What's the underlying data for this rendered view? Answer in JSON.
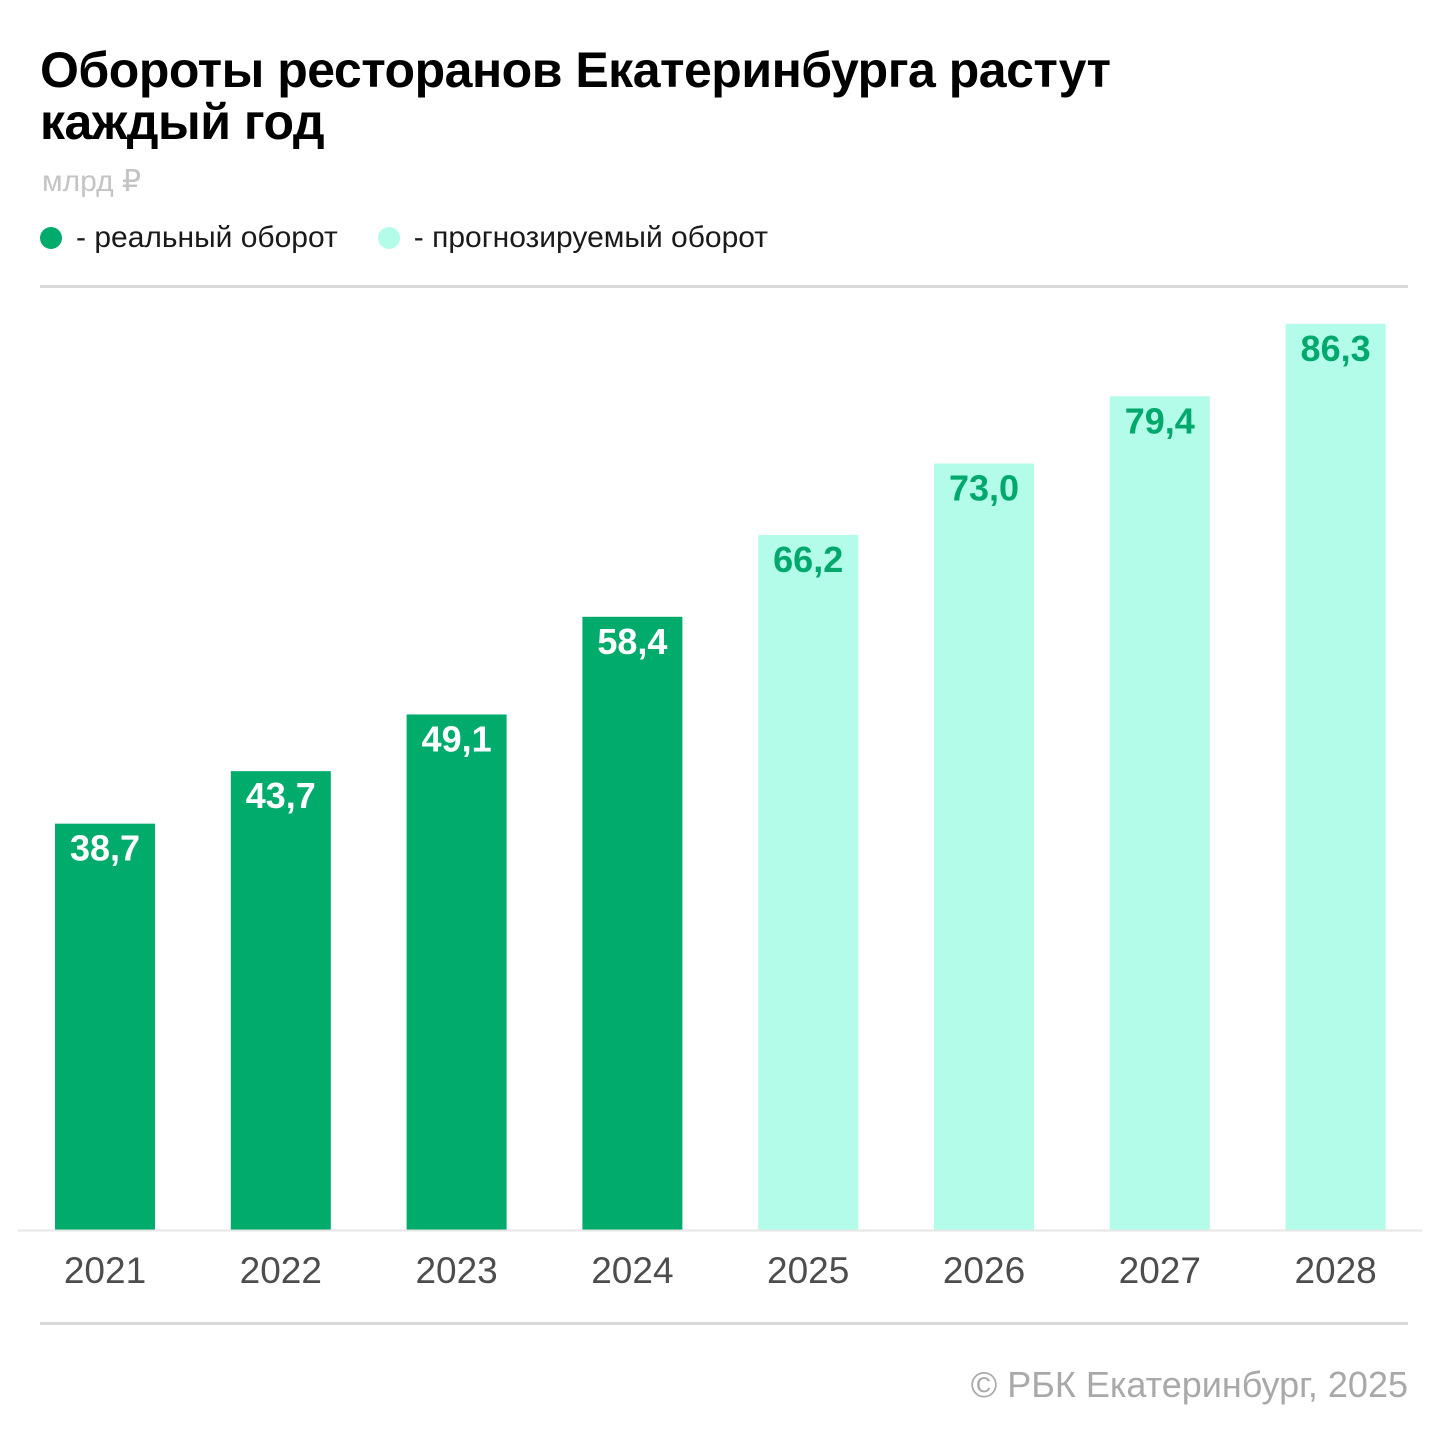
{
  "colors": {
    "actual": "#00ab6c",
    "forecast": "#b3fcea",
    "label_on_actual": "#ffffff",
    "label_on_forecast": "#00a86b",
    "tick": "#4d4d4d"
  },
  "legend": {
    "actual_label": "- реальный оборот",
    "forecast_label": "- прогнозируемый оборот"
  },
  "credit": "© РБК Екатеринбург, 2025",
  "chart_data": {
    "type": "bar",
    "title": "Обороты ресторанов Екатеринбурга растут каждый год",
    "title_lines": [
      "Обороты ресторанов Екатеринбурга растут",
      "каждый год"
    ],
    "unit": "млрд ₽",
    "xlabel": "",
    "ylabel": "",
    "ylim": [
      0,
      90
    ],
    "grid": false,
    "legend_position": "top-left",
    "categories": [
      "2021",
      "2022",
      "2023",
      "2024",
      "2025",
      "2026",
      "2027",
      "2028"
    ],
    "values": [
      38.7,
      43.7,
      49.1,
      58.4,
      66.2,
      73.0,
      79.4,
      86.3
    ],
    "value_labels": [
      "38,7",
      "43,7",
      "49,1",
      "58,4",
      "66,2",
      "73,0",
      "79,4",
      "86,3"
    ],
    "kind": [
      "actual",
      "actual",
      "actual",
      "actual",
      "forecast",
      "forecast",
      "forecast",
      "forecast"
    ]
  }
}
